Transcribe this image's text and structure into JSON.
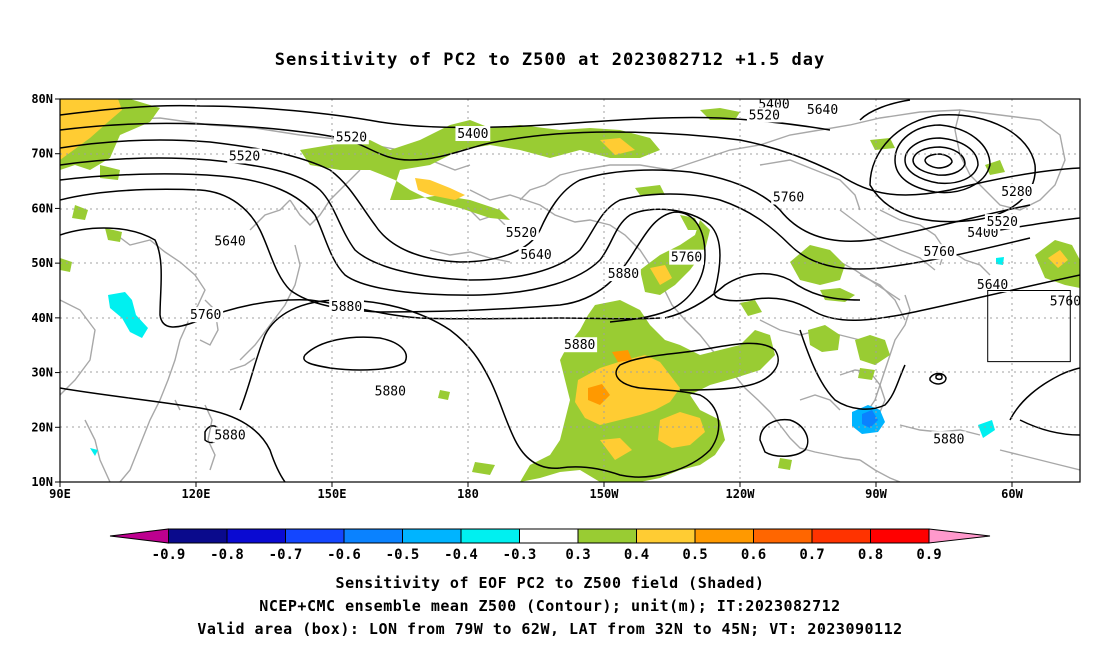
{
  "title": "Sensitivity of PC2 to Z500 at 2023082712 +1.5 day",
  "lat_labels": [
    "80N",
    "70N",
    "60N",
    "50N",
    "40N",
    "30N",
    "20N",
    "10N"
  ],
  "lon_labels": [
    "90E",
    "120E",
    "150E",
    "180",
    "150W",
    "120W",
    "90W",
    "60W"
  ],
  "contour_labels": [
    {
      "text": "5400",
      "lon": -123,
      "lat": 79
    },
    {
      "text": "5400",
      "lon": 175,
      "lat": 73.6
    },
    {
      "text": "5520",
      "lon": -125,
      "lat": 77
    },
    {
      "text": "5520",
      "lon": 150,
      "lat": 73
    },
    {
      "text": "5520",
      "lon": -175,
      "lat": 55.5
    },
    {
      "text": "5520",
      "lon": 128,
      "lat": 69.5
    },
    {
      "text": "5640",
      "lon": -113,
      "lat": 78
    },
    {
      "text": "5640",
      "lon": -172,
      "lat": 51.5
    },
    {
      "text": "5640",
      "lon": 125,
      "lat": 54
    },
    {
      "text": "5760",
      "lon": -120,
      "lat": 62
    },
    {
      "text": "5760",
      "lon": -141,
      "lat": 51
    },
    {
      "text": "5760",
      "lon": 120,
      "lat": 40.5
    },
    {
      "text": "5760",
      "lon": -89,
      "lat": 52
    },
    {
      "text": "5880",
      "lon": 149,
      "lat": 42
    },
    {
      "text": "5880",
      "lon": -154,
      "lat": 48
    },
    {
      "text": "5880",
      "lon": 158,
      "lat": 26.5
    },
    {
      "text": "5880",
      "lon": -163,
      "lat": 35
    },
    {
      "text": "5880",
      "lon": -87,
      "lat": 17.8
    },
    {
      "text": "5880",
      "lon": 125,
      "lat": 18.5
    },
    {
      "text": "5280",
      "lon": -73,
      "lat": 63
    },
    {
      "text": "5400",
      "lon": -80,
      "lat": 55.5
    },
    {
      "text": "5520",
      "lon": -76,
      "lat": 57.5
    },
    {
      "text": "5640",
      "lon": -78,
      "lat": 46
    },
    {
      "text": "5760",
      "lon": -63,
      "lat": 43
    }
  ],
  "valid_box": {
    "lon_min": -79,
    "lon_max": -62,
    "lat_min": 32,
    "lat_max": 45
  },
  "colorbar": {
    "colors": [
      "#bd008f",
      "#0a0a8c",
      "#0a0ad2",
      "#1446ff",
      "#0a82ff",
      "#00b4ff",
      "#00f0f0",
      "#ffffff",
      "#99cc33",
      "#ffcc33",
      "#ff9900",
      "#ff6600",
      "#ff3300",
      "#ff0000",
      "#ff99cc"
    ],
    "labels": [
      "-0.9",
      "-0.8",
      "-0.7",
      "-0.6",
      "-0.5",
      "-0.4",
      "-0.3",
      "0.3",
      "0.4",
      "0.5",
      "0.6",
      "0.7",
      "0.8",
      "0.9"
    ]
  },
  "captions": {
    "line1": "Sensitivity of EOF PC2 to Z500 field (Shaded)",
    "line2": "NCEP+CMC ensemble mean Z500 (Contour); unit(m); IT:2023082712",
    "line3": "Valid area (box): LON from 79W to 62W, LAT from 32N to 45N; VT: 2023090112"
  }
}
